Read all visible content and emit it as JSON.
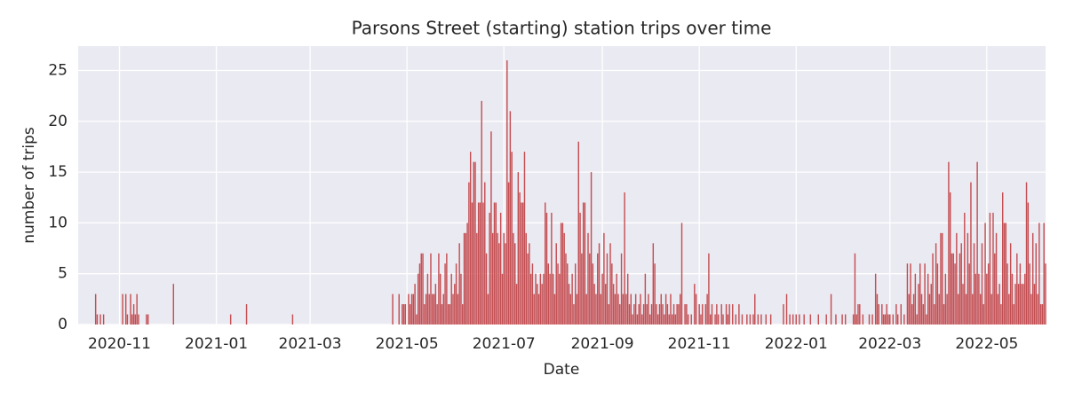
{
  "chart_data": {
    "type": "bar",
    "title": "Parsons Street (starting) station trips over time",
    "xlabel": "Date",
    "ylabel": "number of trips",
    "color": "#c44e52",
    "grid": true,
    "xlim": [
      "2020-10-06",
      "2022-06-07"
    ],
    "xticks": [
      {
        "value": "2020-11-01",
        "label": "2020-11"
      },
      {
        "value": "2021-01-01",
        "label": "2021-01"
      },
      {
        "value": "2021-03-01",
        "label": "2021-03"
      },
      {
        "value": "2021-05-01",
        "label": "2021-05"
      },
      {
        "value": "2021-07-01",
        "label": "2021-07"
      },
      {
        "value": "2021-09-01",
        "label": "2021-09"
      },
      {
        "value": "2021-11-01",
        "label": "2021-11"
      },
      {
        "value": "2022-01-01",
        "label": "2022-01"
      },
      {
        "value": "2022-03-01",
        "label": "2022-03"
      },
      {
        "value": "2022-05-01",
        "label": "2022-05"
      }
    ],
    "ylim": [
      0,
      27.4
    ],
    "yticks": [
      0,
      5,
      10,
      15,
      20,
      25
    ],
    "x": [
      "2020-10-17",
      "2020-10-18",
      "2020-10-20",
      "2020-10-22",
      "2020-11-03",
      "2020-11-05",
      "2020-11-06",
      "2020-11-08",
      "2020-11-09",
      "2020-11-10",
      "2020-11-11",
      "2020-11-12",
      "2020-11-13",
      "2020-11-18",
      "2020-11-19",
      "2020-12-05",
      "2021-01-10",
      "2021-01-20",
      "2021-02-18",
      "2021-04-22",
      "2021-04-26",
      "2021-04-28",
      "2021-04-29",
      "2021-04-30",
      "2021-05-02",
      "2021-05-03",
      "2021-05-04",
      "2021-05-05",
      "2021-05-06",
      "2021-05-07",
      "2021-05-08",
      "2021-05-09",
      "2021-05-10",
      "2021-05-11",
      "2021-05-12",
      "2021-05-13",
      "2021-05-14",
      "2021-05-15",
      "2021-05-16",
      "2021-05-17",
      "2021-05-18",
      "2021-05-19",
      "2021-05-20",
      "2021-05-21",
      "2021-05-22",
      "2021-05-23",
      "2021-05-24",
      "2021-05-25",
      "2021-05-26",
      "2021-05-27",
      "2021-05-28",
      "2021-05-29",
      "2021-05-30",
      "2021-05-31",
      "2021-06-01",
      "2021-06-02",
      "2021-06-03",
      "2021-06-04",
      "2021-06-05",
      "2021-06-06",
      "2021-06-07",
      "2021-06-08",
      "2021-06-09",
      "2021-06-10",
      "2021-06-11",
      "2021-06-12",
      "2021-06-13",
      "2021-06-14",
      "2021-06-15",
      "2021-06-16",
      "2021-06-17",
      "2021-06-18",
      "2021-06-19",
      "2021-06-20",
      "2021-06-21",
      "2021-06-22",
      "2021-06-23",
      "2021-06-24",
      "2021-06-25",
      "2021-06-26",
      "2021-06-27",
      "2021-06-28",
      "2021-06-29",
      "2021-06-30",
      "2021-07-01",
      "2021-07-02",
      "2021-07-03",
      "2021-07-04",
      "2021-07-05",
      "2021-07-06",
      "2021-07-07",
      "2021-07-08",
      "2021-07-09",
      "2021-07-10",
      "2021-07-11",
      "2021-07-12",
      "2021-07-13",
      "2021-07-14",
      "2021-07-15",
      "2021-07-16",
      "2021-07-17",
      "2021-07-18",
      "2021-07-19",
      "2021-07-20",
      "2021-07-21",
      "2021-07-22",
      "2021-07-23",
      "2021-07-24",
      "2021-07-25",
      "2021-07-26",
      "2021-07-27",
      "2021-07-28",
      "2021-07-29",
      "2021-07-30",
      "2021-07-31",
      "2021-08-01",
      "2021-08-02",
      "2021-08-03",
      "2021-08-04",
      "2021-08-05",
      "2021-08-06",
      "2021-08-07",
      "2021-08-08",
      "2021-08-09",
      "2021-08-10",
      "2021-08-11",
      "2021-08-12",
      "2021-08-13",
      "2021-08-14",
      "2021-08-15",
      "2021-08-16",
      "2021-08-17",
      "2021-08-18",
      "2021-08-19",
      "2021-08-20",
      "2021-08-21",
      "2021-08-22",
      "2021-08-23",
      "2021-08-24",
      "2021-08-25",
      "2021-08-26",
      "2021-08-27",
      "2021-08-28",
      "2021-08-29",
      "2021-08-30",
      "2021-08-31",
      "2021-09-01",
      "2021-09-02",
      "2021-09-03",
      "2021-09-04",
      "2021-09-05",
      "2021-09-06",
      "2021-09-07",
      "2021-09-08",
      "2021-09-09",
      "2021-09-10",
      "2021-09-11",
      "2021-09-12",
      "2021-09-13",
      "2021-09-14",
      "2021-09-15",
      "2021-09-16",
      "2021-09-17",
      "2021-09-18",
      "2021-09-19",
      "2021-09-20",
      "2021-09-21",
      "2021-09-22",
      "2021-09-23",
      "2021-09-24",
      "2021-09-25",
      "2021-09-26",
      "2021-09-27",
      "2021-09-28",
      "2021-09-29",
      "2021-09-30",
      "2021-10-01",
      "2021-10-02",
      "2021-10-03",
      "2021-10-04",
      "2021-10-05",
      "2021-10-06",
      "2021-10-07",
      "2021-10-08",
      "2021-10-09",
      "2021-10-10",
      "2021-10-11",
      "2021-10-12",
      "2021-10-13",
      "2021-10-14",
      "2021-10-15",
      "2021-10-16",
      "2021-10-17",
      "2021-10-18",
      "2021-10-19",
      "2021-10-20",
      "2021-10-21",
      "2021-10-23",
      "2021-10-24",
      "2021-10-25",
      "2021-10-27",
      "2021-10-29",
      "2021-10-30",
      "2021-11-01",
      "2021-11-02",
      "2021-11-03",
      "2021-11-05",
      "2021-11-06",
      "2021-11-07",
      "2021-11-08",
      "2021-11-09",
      "2021-11-11",
      "2021-11-12",
      "2021-11-13",
      "2021-11-15",
      "2021-11-16",
      "2021-11-18",
      "2021-11-19",
      "2021-11-20",
      "2021-11-22",
      "2021-11-24",
      "2021-11-26",
      "2021-11-28",
      "2021-12-01",
      "2021-12-03",
      "2021-12-05",
      "2021-12-06",
      "2021-12-08",
      "2021-12-10",
      "2021-12-13",
      "2021-12-16",
      "2021-12-24",
      "2021-12-26",
      "2021-12-28",
      "2021-12-30",
      "2022-01-01",
      "2022-01-03",
      "2022-01-06",
      "2022-01-10",
      "2022-01-15",
      "2022-01-20",
      "2022-01-23",
      "2022-01-26",
      "2022-01-30",
      "2022-02-01",
      "2022-02-06",
      "2022-02-07",
      "2022-02-08",
      "2022-02-09",
      "2022-02-10",
      "2022-02-12",
      "2022-02-16",
      "2022-02-18",
      "2022-02-20",
      "2022-02-21",
      "2022-02-22",
      "2022-02-24",
      "2022-02-25",
      "2022-02-26",
      "2022-02-27",
      "2022-02-28",
      "2022-03-01",
      "2022-03-03",
      "2022-03-05",
      "2022-03-06",
      "2022-03-08",
      "2022-03-10",
      "2022-03-12",
      "2022-03-13",
      "2022-03-14",
      "2022-03-15",
      "2022-03-16",
      "2022-03-17",
      "2022-03-18",
      "2022-03-19",
      "2022-03-20",
      "2022-03-21",
      "2022-03-22",
      "2022-03-23",
      "2022-03-24",
      "2022-03-25",
      "2022-03-26",
      "2022-03-27",
      "2022-03-28",
      "2022-03-29",
      "2022-03-30",
      "2022-03-31",
      "2022-04-01",
      "2022-04-02",
      "2022-04-03",
      "2022-04-04",
      "2022-04-05",
      "2022-04-06",
      "2022-04-07",
      "2022-04-08",
      "2022-04-09",
      "2022-04-10",
      "2022-04-11",
      "2022-04-12",
      "2022-04-13",
      "2022-04-14",
      "2022-04-15",
      "2022-04-16",
      "2022-04-17",
      "2022-04-18",
      "2022-04-19",
      "2022-04-20",
      "2022-04-21",
      "2022-04-22",
      "2022-04-23",
      "2022-04-24",
      "2022-04-25",
      "2022-04-26",
      "2022-04-27",
      "2022-04-28",
      "2022-04-29",
      "2022-04-30",
      "2022-05-01",
      "2022-05-02",
      "2022-05-03",
      "2022-05-04",
      "2022-05-05",
      "2022-05-06",
      "2022-05-07",
      "2022-05-08",
      "2022-05-09",
      "2022-05-10",
      "2022-05-11",
      "2022-05-12",
      "2022-05-13",
      "2022-05-14",
      "2022-05-15",
      "2022-05-16",
      "2022-05-17",
      "2022-05-18",
      "2022-05-19",
      "2022-05-20",
      "2022-05-21",
      "2022-05-22",
      "2022-05-23",
      "2022-05-24",
      "2022-05-25",
      "2022-05-26",
      "2022-05-27",
      "2022-05-28",
      "2022-05-29",
      "2022-05-30",
      "2022-05-31",
      "2022-06-01",
      "2022-06-02",
      "2022-06-03",
      "2022-06-04",
      "2022-06-05",
      "2022-06-06",
      "2022-06-07"
    ],
    "values": [
      3,
      1,
      1,
      1,
      3,
      3,
      1,
      3,
      1,
      2,
      1,
      3,
      1,
      1,
      1,
      4,
      1,
      2,
      1,
      3,
      3,
      2,
      2,
      2,
      3,
      2,
      3,
      3,
      4,
      1,
      5,
      6,
      7,
      7,
      2,
      3,
      5,
      3,
      7,
      3,
      3,
      4,
      2,
      7,
      5,
      2,
      3,
      6,
      7,
      2,
      2,
      5,
      3,
      4,
      6,
      3,
      8,
      5,
      2,
      9,
      9,
      10,
      14,
      17,
      12,
      16,
      16,
      9,
      12,
      12,
      22,
      12,
      14,
      7,
      3,
      11,
      19,
      9,
      12,
      12,
      9,
      8,
      11,
      5,
      9,
      8,
      26,
      14,
      21,
      17,
      9,
      8,
      4,
      15,
      13,
      12,
      12,
      17,
      9,
      7,
      8,
      5,
      6,
      3,
      5,
      4,
      3,
      5,
      4,
      5,
      12,
      11,
      6,
      5,
      11,
      5,
      3,
      8,
      6,
      5,
      10,
      10,
      9,
      7,
      6,
      4,
      3,
      5,
      2,
      6,
      3,
      18,
      11,
      7,
      12,
      12,
      3,
      9,
      7,
      15,
      6,
      4,
      3,
      7,
      8,
      3,
      5,
      9,
      4,
      7,
      2,
      8,
      6,
      4,
      3,
      5,
      3,
      2,
      7,
      3,
      13,
      3,
      5,
      2,
      3,
      1,
      2,
      3,
      1,
      2,
      3,
      1,
      2,
      5,
      2,
      3,
      1,
      2,
      8,
      6,
      2,
      1,
      2,
      3,
      2,
      1,
      3,
      2,
      1,
      3,
      1,
      2,
      1,
      2,
      2,
      3,
      10,
      2,
      2,
      1,
      1,
      4,
      3,
      2,
      1,
      2,
      2,
      3,
      7,
      1,
      2,
      1,
      2,
      1,
      2,
      1,
      2,
      1,
      2,
      2,
      1,
      2,
      1,
      1,
      1,
      1,
      3,
      1,
      1,
      1,
      1,
      2,
      3,
      1,
      1,
      1,
      1,
      1,
      1,
      1,
      1,
      3,
      1,
      1,
      1,
      1,
      7,
      1,
      2,
      2,
      1,
      1,
      1,
      5,
      3,
      2,
      2,
      1,
      1,
      2,
      1,
      1,
      1,
      2,
      1,
      2,
      1,
      6,
      3,
      6,
      2,
      3,
      5,
      1,
      4,
      6,
      3,
      2,
      6,
      1,
      5,
      3,
      4,
      7,
      2,
      8,
      6,
      3,
      9,
      9,
      2,
      5,
      3,
      16,
      13,
      7,
      7,
      6,
      9,
      3,
      7,
      8,
      4,
      11,
      3,
      9,
      6,
      14,
      3,
      8,
      5,
      16,
      5,
      3,
      8,
      2,
      10,
      5,
      6,
      11,
      3,
      11,
      7,
      9,
      3,
      4,
      2,
      13,
      10,
      10,
      6,
      3,
      8,
      5,
      2,
      4,
      7,
      4,
      6,
      4,
      4,
      5,
      14,
      12,
      6,
      3,
      9,
      4,
      8,
      3,
      10,
      2,
      2,
      10,
      6
    ]
  }
}
